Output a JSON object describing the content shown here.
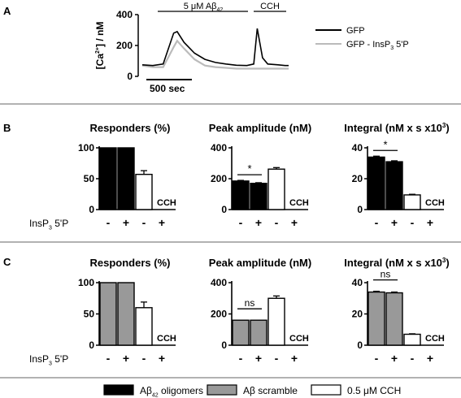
{
  "panels": {
    "A": {
      "letter": "A",
      "ylabel_parts": [
        "[Ca",
        "2+",
        "] / nM"
      ],
      "yticks": [
        0,
        200,
        400
      ],
      "stim1_parts": [
        "5 μM Aβ",
        "42"
      ],
      "stim2": "CCH",
      "scalebar": "500 sec",
      "legend": [
        {
          "label_parts": [
            "GFP",
            "",
            ""
          ],
          "color": "#000000"
        },
        {
          "label_parts": [
            "GFP - InsP",
            "3",
            " 5'P"
          ],
          "color": "#bbbbbb"
        }
      ]
    },
    "B": {
      "letter": "B"
    },
    "C": {
      "letter": "C"
    }
  },
  "row_label_parts": [
    "InsP",
    "3",
    " 5'P"
  ],
  "xtick_labels": [
    "-",
    "+",
    "-",
    "+"
  ],
  "cch_label": "CCH",
  "colors": {
    "oligomer": "#000000",
    "scramble": "#999999",
    "cch": "#ffffff"
  },
  "legend_bottom": [
    {
      "label_parts": [
        "Aβ",
        "42",
        " oligomers"
      ],
      "fill": "#000000"
    },
    {
      "label_parts": [
        "Aβ scramble",
        "",
        ""
      ],
      "fill": "#999999"
    },
    {
      "label_parts": [
        "0.5 μM CCH",
        "",
        ""
      ],
      "fill": "#ffffff"
    }
  ],
  "chart_data": [
    {
      "type": "line",
      "panel": "A",
      "ylabel": "[Ca2+] / nM",
      "ylim": [
        0,
        400
      ],
      "x_unit": "sec",
      "series": [
        {
          "name": "GFP",
          "x": [
            0,
            60,
            120,
            180,
            200,
            240,
            300,
            360,
            420,
            480,
            540,
            600,
            640,
            660,
            690,
            720,
            780,
            820,
            840
          ],
          "y": [
            75,
            70,
            80,
            280,
            290,
            220,
            150,
            110,
            90,
            80,
            72,
            70,
            80,
            310,
            120,
            80,
            75,
            70,
            70
          ]
        },
        {
          "name": "GFP - InsP3 5'P",
          "x": [
            0,
            60,
            120,
            180,
            200,
            240,
            300,
            360,
            420,
            480,
            540,
            600,
            640,
            660,
            690,
            720,
            780,
            820,
            840
          ],
          "y": [
            70,
            60,
            60,
            190,
            230,
            180,
            110,
            70,
            60,
            55,
            50,
            50,
            50,
            50,
            50,
            50,
            50,
            50,
            50
          ]
        }
      ]
    },
    {
      "type": "bar",
      "panel": "B",
      "title": "Responders (%)",
      "yticks": [
        0,
        50,
        100
      ],
      "ylim": [
        0,
        100
      ],
      "values": [
        100,
        100,
        57,
        0
      ],
      "errors": [
        0,
        0,
        6,
        0
      ],
      "fills": [
        "oligomer",
        "oligomer",
        "cch",
        "cch"
      ],
      "cch_index": 3,
      "sig": null
    },
    {
      "type": "bar",
      "panel": "B",
      "title": "Peak amplitude (nM)",
      "yticks": [
        0,
        200,
        400
      ],
      "ylim": [
        0,
        400
      ],
      "values": [
        185,
        170,
        262,
        0
      ],
      "errors": [
        4,
        4,
        10,
        0
      ],
      "fills": [
        "oligomer",
        "oligomer",
        "cch",
        "cch"
      ],
      "cch_index": 3,
      "sig": "*"
    },
    {
      "type": "bar",
      "panel": "B",
      "title_parts": [
        "Integral (nM x s x10",
        "3",
        ")"
      ],
      "yticks": [
        0,
        20,
        40
      ],
      "ylim": [
        0,
        40
      ],
      "values": [
        34,
        31,
        9.5,
        0
      ],
      "errors": [
        0.6,
        0.6,
        0.4,
        0
      ],
      "fills": [
        "oligomer",
        "oligomer",
        "cch",
        "cch"
      ],
      "cch_index": 3,
      "sig": "*"
    },
    {
      "type": "bar",
      "panel": "C",
      "title": "Responders (%)",
      "yticks": [
        0,
        50,
        100
      ],
      "ylim": [
        0,
        100
      ],
      "values": [
        100,
        100,
        60,
        0
      ],
      "errors": [
        0,
        0,
        9,
        0
      ],
      "fills": [
        "scramble",
        "scramble",
        "cch",
        "cch"
      ],
      "cch_index": 3,
      "sig": null
    },
    {
      "type": "bar",
      "panel": "C",
      "title": "Peak amplitude (nM)",
      "yticks": [
        0,
        200,
        400
      ],
      "ylim": [
        0,
        400
      ],
      "values": [
        160,
        160,
        300,
        0
      ],
      "errors": [
        0,
        0,
        15,
        0
      ],
      "fills": [
        "scramble",
        "scramble",
        "cch",
        "cch"
      ],
      "cch_index": 3,
      "sig": "ns"
    },
    {
      "type": "bar",
      "panel": "C",
      "title_parts": [
        "Integral (nM x s x10",
        "3",
        ")"
      ],
      "yticks": [
        0,
        20,
        40
      ],
      "ylim": [
        0,
        40
      ],
      "values": [
        34,
        33.5,
        7,
        0
      ],
      "errors": [
        0.5,
        0.5,
        0.3,
        0
      ],
      "fills": [
        "scramble",
        "scramble",
        "cch",
        "cch"
      ],
      "cch_index": 3,
      "sig": "ns"
    }
  ]
}
